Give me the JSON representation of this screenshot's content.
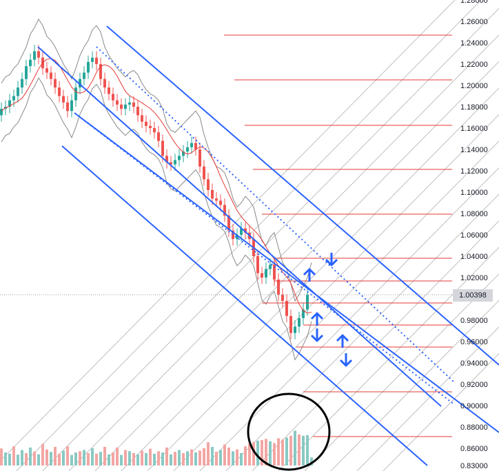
{
  "chart_data": {
    "type": "candlestick",
    "title": "",
    "xlabel": "",
    "ylabel": "",
    "ylim": [
      0.83,
      1.28
    ],
    "y_ticks": [
      "1.28000",
      "1.26000",
      "1.24000",
      "1.22000",
      "1.20000",
      "1.18000",
      "1.16000",
      "1.14000",
      "1.12000",
      "1.10000",
      "1.08000",
      "1.06000",
      "1.04000",
      "1.02000",
      "1.00000",
      "0.98000",
      "0.96000",
      "0.94000",
      "0.92000",
      "0.90000",
      "0.88000",
      "0.86000",
      "0.83000"
    ],
    "current_price": "1.00398",
    "price_path": [
      [
        0,
        1.172
      ],
      [
        6,
        1.178
      ],
      [
        12,
        1.18
      ],
      [
        18,
        1.186
      ],
      [
        24,
        1.19
      ],
      [
        30,
        1.198
      ],
      [
        36,
        1.206
      ],
      [
        42,
        1.218
      ],
      [
        48,
        1.224
      ],
      [
        54,
        1.232
      ],
      [
        60,
        1.226
      ],
      [
        66,
        1.216
      ],
      [
        72,
        1.212
      ],
      [
        78,
        1.206
      ],
      [
        84,
        1.198
      ],
      [
        90,
        1.19
      ],
      [
        96,
        1.184
      ],
      [
        102,
        1.176
      ],
      [
        108,
        1.186
      ],
      [
        114,
        1.198
      ],
      [
        120,
        1.206
      ],
      [
        126,
        1.212
      ],
      [
        132,
        1.222
      ],
      [
        138,
        1.226
      ],
      [
        144,
        1.22
      ],
      [
        150,
        1.206
      ],
      [
        156,
        1.198
      ],
      [
        162,
        1.192
      ],
      [
        168,
        1.186
      ],
      [
        174,
        1.182
      ],
      [
        180,
        1.178
      ],
      [
        186,
        1.182
      ],
      [
        192,
        1.184
      ],
      [
        198,
        1.18
      ],
      [
        204,
        1.172
      ],
      [
        210,
        1.166
      ],
      [
        216,
        1.162
      ],
      [
        222,
        1.16
      ],
      [
        228,
        1.156
      ],
      [
        234,
        1.148
      ],
      [
        240,
        1.134
      ],
      [
        246,
        1.128
      ],
      [
        252,
        1.126
      ],
      [
        258,
        1.13
      ],
      [
        264,
        1.134
      ],
      [
        270,
        1.138
      ],
      [
        276,
        1.142
      ],
      [
        282,
        1.146
      ],
      [
        288,
        1.14
      ],
      [
        294,
        1.124
      ],
      [
        300,
        1.112
      ],
      [
        306,
        1.102
      ],
      [
        312,
        1.094
      ],
      [
        318,
        1.092
      ],
      [
        324,
        1.088
      ],
      [
        330,
        1.078
      ],
      [
        336,
        1.064
      ],
      [
        342,
        1.056
      ],
      [
        348,
        1.06
      ],
      [
        354,
        1.066
      ],
      [
        360,
        1.062
      ],
      [
        366,
        1.056
      ],
      [
        372,
        1.04
      ],
      [
        378,
        1.024
      ],
      [
        384,
        1.02
      ],
      [
        390,
        1.028
      ],
      [
        396,
        1.032
      ],
      [
        402,
        1.018
      ],
      [
        408,
        1.004
      ],
      [
        414,
        0.998
      ],
      [
        420,
        0.984
      ],
      [
        426,
        0.968
      ],
      [
        432,
        0.974
      ],
      [
        438,
        0.982
      ],
      [
        444,
        0.99
      ],
      [
        450,
        1.004
      ]
    ],
    "volume_bars": [
      [
        0,
        0.55,
        "red"
      ],
      [
        6,
        0.42,
        "green"
      ],
      [
        12,
        0.38,
        "green"
      ],
      [
        18,
        0.62,
        "red"
      ],
      [
        24,
        0.35,
        "green"
      ],
      [
        30,
        0.5,
        "green"
      ],
      [
        36,
        0.4,
        "red"
      ],
      [
        42,
        0.58,
        "green"
      ],
      [
        48,
        0.45,
        "red"
      ],
      [
        54,
        0.36,
        "green"
      ],
      [
        60,
        0.7,
        "red"
      ],
      [
        66,
        0.52,
        "red"
      ],
      [
        72,
        0.44,
        "green"
      ],
      [
        78,
        0.6,
        "red"
      ],
      [
        84,
        0.38,
        "red"
      ],
      [
        90,
        0.48,
        "green"
      ],
      [
        96,
        0.62,
        "red"
      ],
      [
        102,
        0.34,
        "green"
      ],
      [
        108,
        0.42,
        "green"
      ],
      [
        114,
        0.46,
        "red"
      ],
      [
        120,
        0.5,
        "green"
      ],
      [
        126,
        0.4,
        "red"
      ],
      [
        132,
        0.56,
        "green"
      ],
      [
        138,
        0.38,
        "red"
      ],
      [
        144,
        0.44,
        "green"
      ],
      [
        150,
        0.6,
        "red"
      ],
      [
        156,
        0.36,
        "green"
      ],
      [
        162,
        0.42,
        "red"
      ],
      [
        168,
        0.58,
        "red"
      ],
      [
        174,
        0.34,
        "green"
      ],
      [
        180,
        0.5,
        "red"
      ],
      [
        186,
        0.46,
        "green"
      ],
      [
        192,
        0.4,
        "red"
      ],
      [
        198,
        0.36,
        "green"
      ],
      [
        204,
        0.48,
        "red"
      ],
      [
        210,
        0.4,
        "green"
      ],
      [
        216,
        0.54,
        "red"
      ],
      [
        222,
        0.38,
        "green"
      ],
      [
        228,
        0.46,
        "red"
      ],
      [
        234,
        0.42,
        "green"
      ],
      [
        240,
        0.58,
        "red"
      ],
      [
        246,
        0.36,
        "green"
      ],
      [
        252,
        0.44,
        "red"
      ],
      [
        258,
        0.5,
        "green"
      ],
      [
        264,
        0.4,
        "red"
      ],
      [
        270,
        0.46,
        "green"
      ],
      [
        276,
        0.52,
        "red"
      ],
      [
        282,
        0.42,
        "green"
      ],
      [
        288,
        0.48,
        "red"
      ],
      [
        294,
        0.56,
        "red"
      ],
      [
        300,
        0.75,
        "red"
      ],
      [
        306,
        0.6,
        "green"
      ],
      [
        312,
        0.44,
        "red"
      ],
      [
        318,
        0.5,
        "green"
      ],
      [
        324,
        0.68,
        "red"
      ],
      [
        330,
        0.58,
        "red"
      ],
      [
        336,
        0.46,
        "green"
      ],
      [
        342,
        0.52,
        "red"
      ],
      [
        348,
        0.4,
        "green"
      ],
      [
        354,
        0.62,
        "red"
      ],
      [
        360,
        0.7,
        "red"
      ],
      [
        366,
        0.76,
        "red"
      ],
      [
        372,
        0.8,
        "green"
      ],
      [
        378,
        0.82,
        "red"
      ],
      [
        384,
        0.86,
        "red"
      ],
      [
        390,
        0.78,
        "green"
      ],
      [
        396,
        0.72,
        "red"
      ],
      [
        402,
        0.88,
        "red"
      ],
      [
        408,
        0.84,
        "red"
      ],
      [
        414,
        0.9,
        "green"
      ],
      [
        420,
        0.96,
        "red"
      ],
      [
        426,
        1.12,
        "green"
      ],
      [
        432,
        1.0,
        "red"
      ],
      [
        438,
        0.96,
        "green"
      ],
      [
        444,
        0.98,
        "green"
      ],
      [
        450,
        0.26,
        "green"
      ]
    ],
    "channel_lines": [
      [
        [
          155,
          38
        ],
        [
          724,
          530
        ],
        "solid"
      ],
      [
        [
          55,
          68
        ],
        [
          640,
          590
        ],
        "solid"
      ],
      [
        [
          108,
          164
        ],
        [
          724,
          628
        ],
        "solid"
      ],
      [
        [
          90,
          212
        ],
        [
          620,
          676
        ],
        "solid"
      ],
      [
        [
          140,
          68
        ],
        [
          660,
          556
        ],
        "dotted"
      ],
      [
        [
          108,
          164
        ],
        [
          660,
          588
        ],
        "dotted"
      ]
    ],
    "red_levels": [
      [
        325,
        656,
        51
      ],
      [
        340,
        656,
        116
      ],
      [
        355,
        656,
        182
      ],
      [
        367,
        656,
        246
      ],
      [
        380,
        656,
        311
      ],
      [
        397,
        656,
        375
      ],
      [
        397,
        656,
        408
      ],
      [
        380,
        656,
        440
      ],
      [
        440,
        656,
        472
      ],
      [
        430,
        656,
        504
      ],
      [
        440,
        656,
        569
      ],
      [
        454,
        656,
        634
      ]
    ],
    "arrows": [
      [
        449,
        395,
        "up"
      ],
      [
        481,
        381,
        "down"
      ],
      [
        460,
        459,
        "up"
      ],
      [
        460,
        491,
        "down"
      ],
      [
        497,
        491,
        "up"
      ],
      [
        502,
        527,
        "down"
      ]
    ],
    "colors": {
      "candle_up": "#26a69a",
      "candle_down": "#ef5350",
      "volume_up": "#89c9c3",
      "volume_down": "#f3a6a3",
      "channel": "#2962ff",
      "fan": "#b0b0b0",
      "level": "#e53935",
      "ma": "#e53935",
      "band": "#888888",
      "annotation_circle": "#000000"
    }
  }
}
